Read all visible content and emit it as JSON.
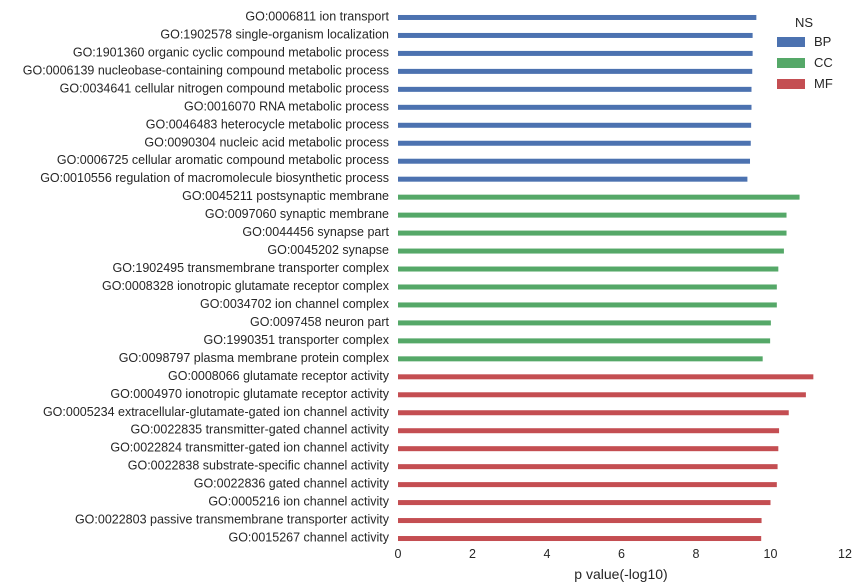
{
  "chart_data": {
    "type": "bar",
    "orientation": "horizontal",
    "xlabel": "p value(-log10)",
    "ylabel": "",
    "xlim": [
      0,
      12
    ],
    "xticks": [
      0,
      2,
      4,
      6,
      8,
      10,
      12
    ],
    "grid": false,
    "legend": {
      "title": "NS",
      "placement": "top-right",
      "entries": [
        "BP",
        "CC",
        "MF"
      ]
    },
    "colors": {
      "BP": "#4c72b0",
      "CC": "#55a868",
      "MF": "#c44e52"
    },
    "categories": [
      "GO:0006811 ion transport",
      "GO:1902578 single-organism localization",
      "GO:1901360 organic cyclic compound metabolic process",
      "GO:0006139 nucleobase-containing compound metabolic process",
      "GO:0034641 cellular nitrogen compound metabolic process",
      "GO:0016070 RNA metabolic process",
      "GO:0046483 heterocycle metabolic process",
      "GO:0090304 nucleic acid metabolic process",
      "GO:0006725 cellular aromatic compound metabolic process",
      "GO:0010556 regulation of macromolecule biosynthetic process",
      "GO:0045211 postsynaptic membrane",
      "GO:0097060 synaptic membrane",
      "GO:0044456 synapse part",
      "GO:0045202 synapse",
      "GO:1902495 transmembrane transporter complex",
      "GO:0008328 ionotropic glutamate receptor complex",
      "GO:0034702 ion channel complex",
      "GO:0097458 neuron part",
      "GO:1990351 transporter complex",
      "GO:0098797 plasma membrane protein complex",
      "GO:0008066 glutamate receptor activity",
      "GO:0004970 ionotropic glutamate receptor activity",
      "GO:0005234 extracellular-glutamate-gated ion channel activity",
      "GO:0022835 transmitter-gated channel activity",
      "GO:0022824 transmitter-gated ion channel activity",
      "GO:0022838 substrate-specific channel activity",
      "GO:0022836 gated channel activity",
      "GO:0005216 ion channel activity",
      "GO:0022803 passive transmembrane transporter activity",
      "GO:0015267 channel activity"
    ],
    "ns": [
      "BP",
      "BP",
      "BP",
      "BP",
      "BP",
      "BP",
      "BP",
      "BP",
      "BP",
      "BP",
      "CC",
      "CC",
      "CC",
      "CC",
      "CC",
      "CC",
      "CC",
      "CC",
      "CC",
      "CC",
      "MF",
      "MF",
      "MF",
      "MF",
      "MF",
      "MF",
      "MF",
      "MF",
      "MF",
      "MF"
    ],
    "values": [
      9.62,
      9.52,
      9.52,
      9.51,
      9.49,
      9.49,
      9.48,
      9.47,
      9.45,
      9.38,
      10.78,
      10.43,
      10.43,
      10.36,
      10.21,
      10.17,
      10.17,
      10.01,
      9.99,
      9.79,
      11.15,
      10.95,
      10.49,
      10.23,
      10.21,
      10.19,
      10.17,
      10.0,
      9.76,
      9.75
    ]
  }
}
